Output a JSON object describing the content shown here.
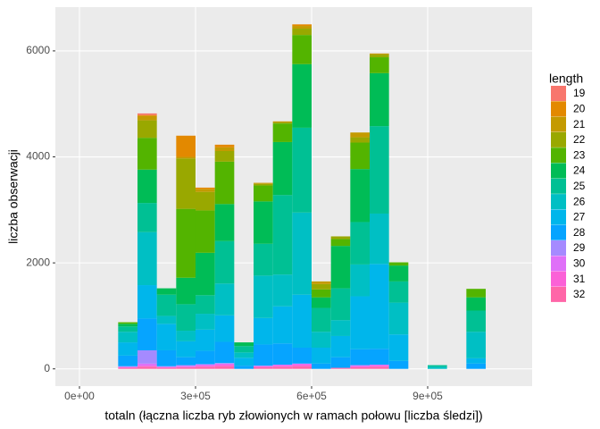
{
  "chart_data": {
    "type": "histogram",
    "x_label": "totaln (łączna liczba ryb złowionych w ramach połowu [liczba śledzi])",
    "y_label": "liczba obserwacji",
    "legend_title": "length",
    "bins": [
      100000,
      150000,
      200000,
      250000,
      300000,
      350000,
      400000,
      450000,
      500000,
      550000,
      600000,
      650000,
      700000,
      750000,
      800000,
      850000,
      900000,
      950000,
      1000000,
      1050000
    ],
    "series": [
      {
        "name": "19",
        "color": "#F8766D",
        "values": [
          0,
          30,
          0,
          0,
          0,
          0,
          0,
          0,
          0,
          0,
          0,
          0,
          0,
          0,
          0,
          0,
          0,
          0,
          0
        ]
      },
      {
        "name": "20",
        "color": "#E38900",
        "values": [
          0,
          20,
          0,
          400,
          30,
          50,
          0,
          0,
          0,
          30,
          0,
          0,
          0,
          0,
          0,
          0,
          0,
          0,
          0
        ]
      },
      {
        "name": "21",
        "color": "#C49A00",
        "values": [
          0,
          80,
          0,
          30,
          50,
          70,
          0,
          20,
          20,
          50,
          50,
          0,
          90,
          20,
          0,
          0,
          0,
          0,
          0
        ]
      },
      {
        "name": "22",
        "color": "#99A800",
        "values": [
          0,
          330,
          0,
          950,
          350,
          200,
          0,
          30,
          20,
          120,
          100,
          50,
          100,
          50,
          0,
          0,
          0,
          0,
          0
        ]
      },
      {
        "name": "23",
        "color": "#53B400",
        "values": [
          30,
          600,
          0,
          1300,
          800,
          800,
          0,
          300,
          350,
          550,
          150,
          130,
          500,
          300,
          60,
          0,
          0,
          0,
          160
        ]
      },
      {
        "name": "24",
        "color": "#00BC56",
        "values": [
          50,
          630,
          120,
          500,
          800,
          700,
          70,
          800,
          1000,
          1200,
          200,
          800,
          1000,
          1000,
          300,
          0,
          0,
          0,
          250
        ]
      },
      {
        "name": "25",
        "color": "#00C094",
        "values": [
          100,
          550,
          400,
          500,
          350,
          800,
          120,
          600,
          1500,
          1600,
          450,
          600,
          800,
          1650,
          400,
          0,
          30,
          0,
          400
        ]
      },
      {
        "name": "26",
        "color": "#00BFC4",
        "values": [
          200,
          1000,
          150,
          200,
          300,
          600,
          100,
          800,
          600,
          1550,
          300,
          300,
          600,
          950,
          600,
          0,
          40,
          0,
          500
        ]
      },
      {
        "name": "27",
        "color": "#00B6EB",
        "values": [
          250,
          630,
          500,
          300,
          400,
          500,
          150,
          500,
          700,
          1000,
          300,
          400,
          1000,
          1600,
          500,
          0,
          0,
          0,
          100
        ]
      },
      {
        "name": "28",
        "color": "#06A4FF",
        "values": [
          200,
          600,
          300,
          150,
          250,
          400,
          60,
          400,
          400,
          300,
          100,
          200,
          300,
          300,
          150,
          0,
          0,
          0,
          100
        ]
      },
      {
        "name": "29",
        "color": "#A58AFF",
        "values": [
          10,
          250,
          10,
          10,
          10,
          10,
          0,
          0,
          0,
          0,
          0,
          0,
          0,
          0,
          0,
          0,
          0,
          0,
          0
        ]
      },
      {
        "name": "30",
        "color": "#DF70F8",
        "values": [
          10,
          40,
          10,
          20,
          20,
          20,
          0,
          10,
          20,
          20,
          0,
          0,
          20,
          20,
          0,
          0,
          0,
          0,
          0
        ]
      },
      {
        "name": "31",
        "color": "#FB61D7",
        "values": [
          10,
          20,
          10,
          10,
          20,
          30,
          0,
          20,
          20,
          30,
          0,
          0,
          20,
          20,
          0,
          0,
          0,
          0,
          0
        ]
      },
      {
        "name": "32",
        "color": "#FF66A8",
        "values": [
          20,
          40,
          20,
          30,
          40,
          50,
          0,
          30,
          40,
          50,
          0,
          20,
          30,
          40,
          0,
          0,
          0,
          0,
          0
        ]
      }
    ],
    "xlim": [
      -62300,
      1170000
    ],
    "ylim": [
      -325,
      6825
    ],
    "xticks": [
      {
        "value": 0,
        "label": "0e+00"
      },
      {
        "value": 300000,
        "label": "3e+05"
      },
      {
        "value": 600000,
        "label": "6e+05"
      },
      {
        "value": 900000,
        "label": "9e+05"
      }
    ],
    "yticks": [
      0,
      2000,
      4000,
      6000
    ],
    "grid": true,
    "legend_position": "right"
  }
}
